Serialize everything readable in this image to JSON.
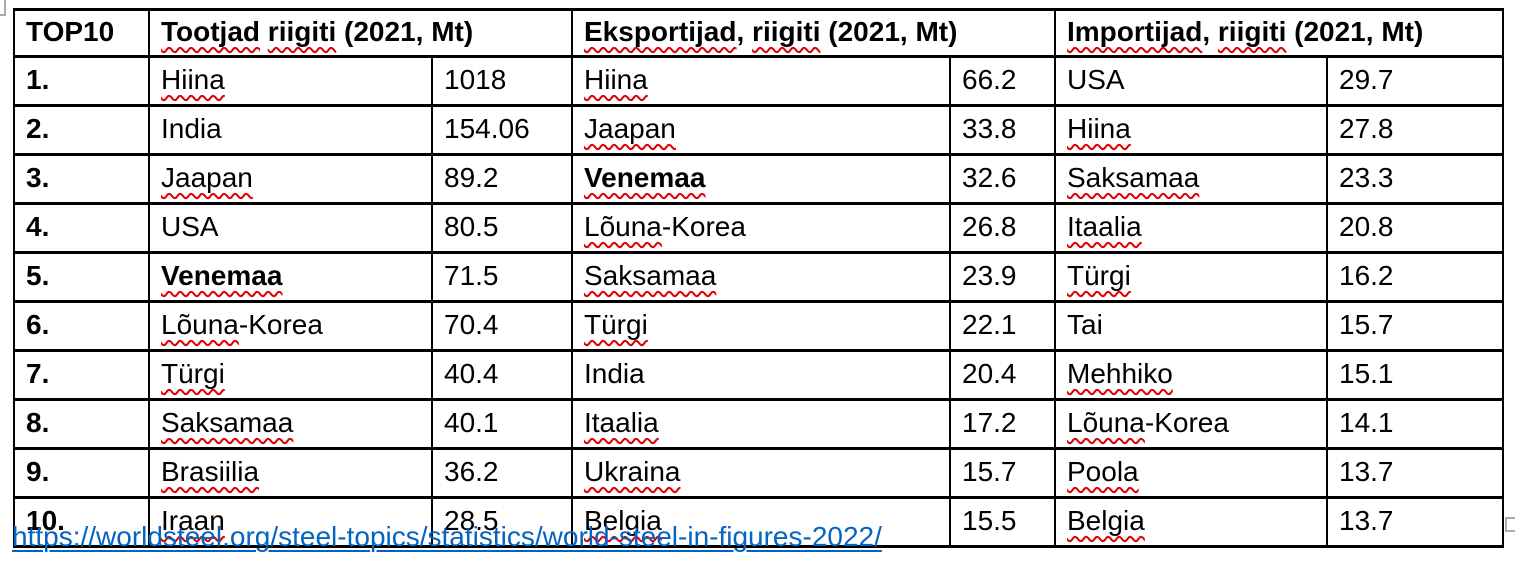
{
  "table": {
    "header": {
      "rank": "TOP10",
      "producers": "Tootjad riigiti (2021, Mt)",
      "exporters": "Eksportijad, riigiti (2021, Mt)",
      "importers": "Importijad, riigiti (2021, Mt)"
    },
    "rows": [
      {
        "rank": "1.",
        "producer": {
          "country": "Hiina",
          "value": "1018",
          "bold": false
        },
        "exporter": {
          "country": "Hiina",
          "value": "66.2",
          "bold": false
        },
        "importer": {
          "country": "USA",
          "value": "29.7",
          "bold": false
        }
      },
      {
        "rank": "2.",
        "producer": {
          "country": "India",
          "value": "154.06",
          "bold": false
        },
        "exporter": {
          "country": "Jaapan",
          "value": "33.8",
          "bold": false
        },
        "importer": {
          "country": "Hiina",
          "value": "27.8",
          "bold": false
        }
      },
      {
        "rank": "3.",
        "producer": {
          "country": "Jaapan",
          "value": "89.2",
          "bold": false
        },
        "exporter": {
          "country": "Venemaa",
          "value": "32.6",
          "bold": true
        },
        "importer": {
          "country": "Saksamaa",
          "value": "23.3",
          "bold": false
        }
      },
      {
        "rank": "4.",
        "producer": {
          "country": "USA",
          "value": "80.5",
          "bold": false
        },
        "exporter": {
          "country": "Lõuna-Korea",
          "value": "26.8",
          "bold": false
        },
        "importer": {
          "country": "Itaalia",
          "value": "20.8",
          "bold": false
        }
      },
      {
        "rank": "5.",
        "producer": {
          "country": "Venemaa",
          "value": "71.5",
          "bold": true
        },
        "exporter": {
          "country": "Saksamaa",
          "value": "23.9",
          "bold": false
        },
        "importer": {
          "country": "Türgi",
          "value": "16.2",
          "bold": false
        }
      },
      {
        "rank": "6.",
        "producer": {
          "country": "Lõuna-Korea",
          "value": "70.4",
          "bold": false
        },
        "exporter": {
          "country": "Türgi",
          "value": "22.1",
          "bold": false
        },
        "importer": {
          "country": "Tai",
          "value": "15.7",
          "bold": false
        }
      },
      {
        "rank": "7.",
        "producer": {
          "country": "Türgi",
          "value": "40.4",
          "bold": false
        },
        "exporter": {
          "country": "India",
          "value": "20.4",
          "bold": false
        },
        "importer": {
          "country": "Mehhiko",
          "value": "15.1",
          "bold": false
        }
      },
      {
        "rank": "8.",
        "producer": {
          "country": "Saksamaa",
          "value": "40.1",
          "bold": false
        },
        "exporter": {
          "country": "Itaalia",
          "value": "17.2",
          "bold": false
        },
        "importer": {
          "country": "Lõuna-Korea",
          "value": "14.1",
          "bold": false
        }
      },
      {
        "rank": "9.",
        "producer": {
          "country": "Brasiilia",
          "value": "36.2",
          "bold": false
        },
        "exporter": {
          "country": "Ukraina",
          "value": "15.7",
          "bold": false
        },
        "importer": {
          "country": "Poola",
          "value": "13.7",
          "bold": false
        }
      },
      {
        "rank": "10.",
        "producer": {
          "country": "Iraan",
          "value": "28.5",
          "bold": false
        },
        "exporter": {
          "country": "Belgia",
          "value": "15.5",
          "bold": false
        },
        "importer": {
          "country": "Belgia",
          "value": "13.7",
          "bold": false
        }
      }
    ]
  },
  "misspelled_words": [
    "Tootjad",
    "riigiti",
    "Eksportijad",
    "Importijad",
    "Hiina",
    "Jaapan",
    "Venemaa",
    "Lõuna",
    "Saksamaa",
    "Türgi",
    "Brasiilia",
    "Iraan",
    "Itaalia",
    "Ukraina",
    "Belgia",
    "Mehhiko",
    "Poola"
  ],
  "source_link": {
    "text": "https://worldsteel.org/steel-topics/statistics/world-steel-in-figures-2022/"
  },
  "colors": {
    "border": "#000000",
    "squiggle": "#e00000",
    "link": "#0563c1",
    "handle": "#ababab"
  }
}
